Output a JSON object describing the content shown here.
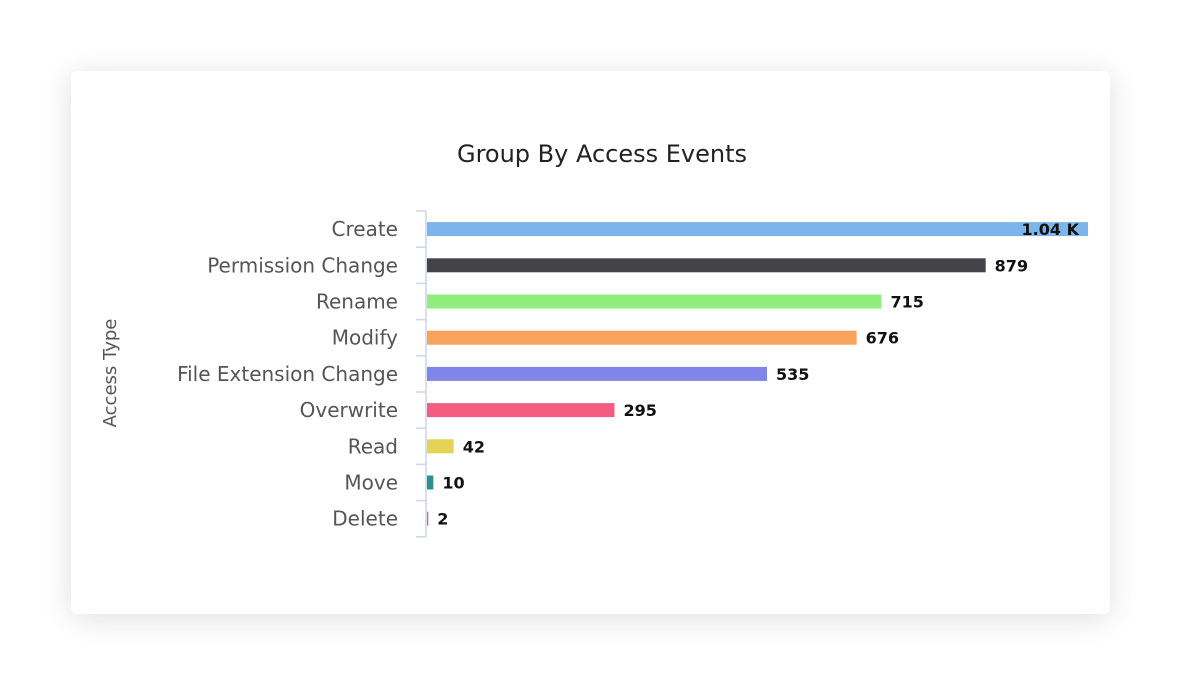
{
  "chart_data": {
    "type": "bar",
    "orientation": "horizontal",
    "title": "Group By Access Events",
    "ylabel": "Access Type",
    "xlabel": "",
    "categories": [
      "Create",
      "Permission Change",
      "Rename",
      "Modify",
      "File Extension Change",
      "Overwrite",
      "Read",
      "Move",
      "Delete"
    ],
    "values": [
      1040,
      879,
      715,
      676,
      535,
      295,
      42,
      10,
      2
    ],
    "data_labels": [
      "1.04 K",
      "879",
      "715",
      "676",
      "535",
      "295",
      "42",
      "10",
      "2"
    ],
    "colors": [
      "#7cb5ec",
      "#434348",
      "#90ed7d",
      "#f7a35c",
      "#8085e9",
      "#f15c80",
      "#e4d354",
      "#2b908f",
      "#f45b5b"
    ],
    "xlim": [
      0,
      1040
    ],
    "grid": false,
    "legend": "none"
  }
}
